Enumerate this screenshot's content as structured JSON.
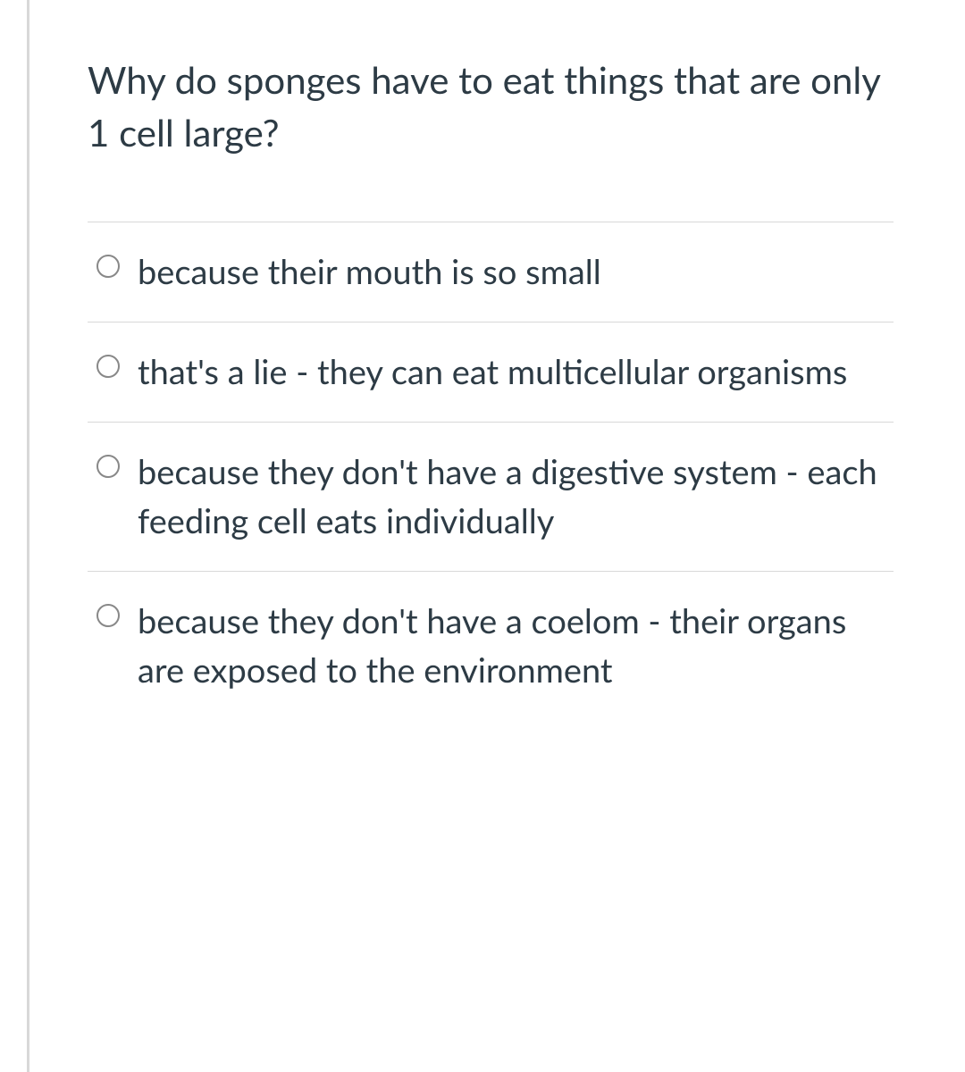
{
  "question": {
    "text": "Why do sponges have to eat things that are only 1 cell large?",
    "options": [
      "because their mouth is so small",
      "that's a lie - they can eat multicellular organisms",
      "because they don't have a digestive system - each feeding cell eats individually",
      "because they don't have a coelom - their organs are exposed to the environment"
    ]
  },
  "styling": {
    "text_color": "#2d3b45",
    "border_color": "#d8d8d8",
    "radio_border_color": "#888888",
    "background_color": "#ffffff",
    "question_fontsize": 42,
    "option_fontsize": 38
  }
}
